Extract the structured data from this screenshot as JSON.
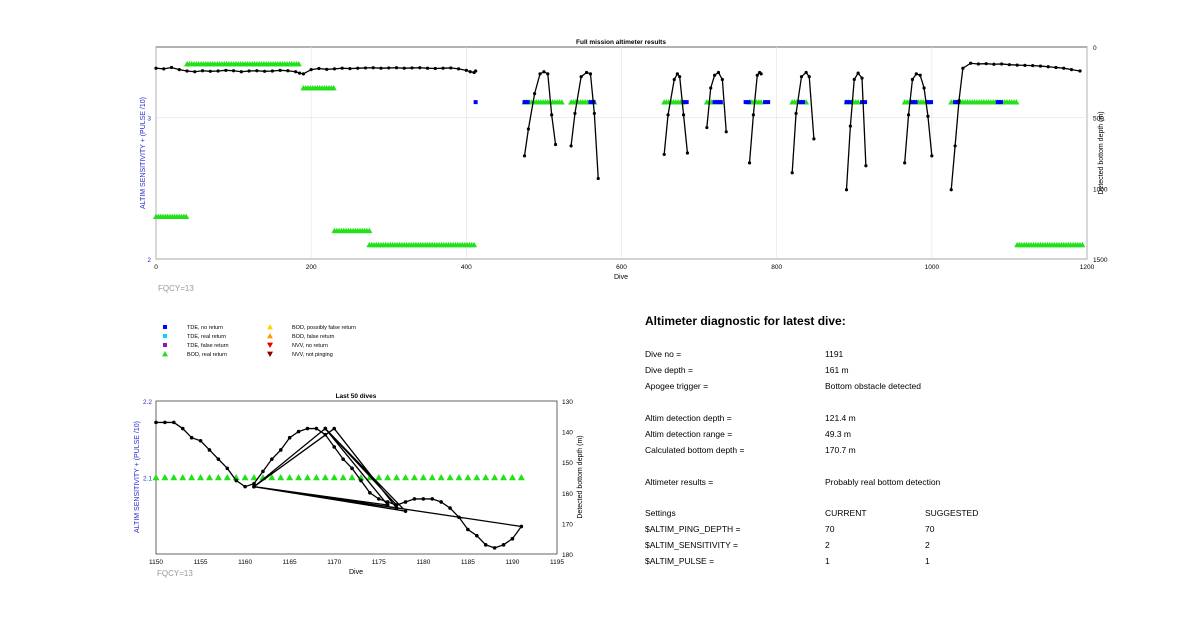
{
  "colors": {
    "tde_no_return": "#0000ff",
    "tde_real_return": "#00d8ff",
    "tde_false_return": "#7a1fbf",
    "bod_real_return": "#22e01a",
    "bod_possibly_false": "#ffd400",
    "bod_false_return": "#ff9d00",
    "nvv_no_return": "#e60000",
    "nvv_not_pinging": "#8b0000",
    "depth_line": "#000000",
    "left_axis_label": "#2a2ad0",
    "fqcy_text": "#999999"
  },
  "legend": {
    "items": [
      {
        "label": "TDE, no return",
        "icon": "square",
        "color": "#0000ff"
      },
      {
        "label": "TDE, real return",
        "icon": "square",
        "color": "#00d8ff"
      },
      {
        "label": "TDE, false return",
        "icon": "square",
        "color": "#7a1fbf"
      },
      {
        "label": "BOD, real return",
        "icon": "triangle-up",
        "color": "#22e01a"
      },
      {
        "label": "BOD, possibly false return",
        "icon": "triangle-up",
        "color": "#ffd400"
      },
      {
        "label": "BOD, false return",
        "icon": "triangle-up",
        "color": "#ff9d00"
      },
      {
        "label": "NVV, no return",
        "icon": "triangle-down",
        "color": "#e60000"
      },
      {
        "label": "NVV, not pinging",
        "icon": "triangle-down",
        "color": "#8b0000"
      }
    ]
  },
  "chart_data": [
    {
      "type": "scatter",
      "title": "Full mission altimeter results",
      "xlabel": "Dive",
      "ylabel_left": "ALTIM SENSITIVITY + (PULSE /10)",
      "ylabel_right": "Detected bottom depth (m)",
      "xlim": [
        0,
        1200
      ],
      "ylim_left": [
        2,
        3.5
      ],
      "ylim_right_reversed": [
        0,
        1500
      ],
      "x_ticks": [
        0,
        200,
        400,
        600,
        800,
        1000,
        1200
      ],
      "y_left_ticks": [
        2,
        3
      ],
      "y_right_ticks": [
        0,
        500,
        1000,
        1500
      ],
      "grid": true,
      "annotation": "FQCY=13",
      "depth_series": {
        "name": "Detected bottom depth",
        "x": [
          0,
          10,
          20,
          30,
          40,
          50,
          60,
          70,
          80,
          90,
          100,
          110,
          120,
          130,
          140,
          150,
          160,
          170,
          180,
          185,
          190,
          200,
          210,
          220,
          230,
          240,
          250,
          260,
          270,
          280,
          290,
          300,
          310,
          320,
          330,
          340,
          350,
          360,
          370,
          380,
          390,
          400,
          405,
          410,
          412
        ],
        "y": [
          150,
          155,
          145,
          160,
          170,
          175,
          168,
          172,
          170,
          165,
          168,
          175,
          170,
          168,
          172,
          170,
          165,
          168,
          175,
          185,
          190,
          160,
          152,
          158,
          155,
          150,
          153,
          150,
          148,
          147,
          150,
          148,
          147,
          150,
          148,
          147,
          150,
          152,
          150,
          148,
          155,
          165,
          175,
          180,
          170
        ],
        "excursions": [
          {
            "x": [
              475,
              480,
              488,
              495,
              500,
              505,
              510,
              515
            ],
            "y": [
              770,
              580,
              330,
              190,
              175,
              190,
              480,
              690
            ]
          },
          {
            "x": [
              535,
              540,
              548,
              555,
              560,
              565,
              570
            ],
            "y": [
              700,
              470,
              210,
              180,
              190,
              470,
              930
            ]
          },
          {
            "x": [
              655,
              660,
              668,
              672,
              675,
              680,
              685
            ],
            "y": [
              760,
              480,
              230,
              190,
              210,
              480,
              750
            ]
          },
          {
            "x": [
              710,
              715,
              720,
              725,
              730,
              735
            ],
            "y": [
              570,
              290,
              200,
              180,
              230,
              600
            ]
          },
          {
            "x": [
              765,
              770,
              775,
              778,
              780
            ],
            "y": [
              820,
              480,
              200,
              180,
              190
            ]
          },
          {
            "x": [
              820,
              825,
              832,
              838,
              842,
              848
            ],
            "y": [
              890,
              470,
              210,
              180,
              210,
              650
            ]
          },
          {
            "x": [
              890,
              895,
              900,
              905,
              910,
              915
            ],
            "y": [
              1010,
              560,
              230,
              185,
              220,
              840
            ]
          },
          {
            "x": [
              965,
              970,
              975,
              980,
              985,
              990,
              995,
              1000
            ],
            "y": [
              820,
              480,
              230,
              190,
              200,
              290,
              490,
              770
            ]
          },
          {
            "x": [
              1025,
              1030,
              1035,
              1040,
              1050,
              1060,
              1070,
              1080,
              1090,
              1100,
              1110,
              1120,
              1130,
              1140,
              1150,
              1160,
              1170,
              1180,
              1191
            ],
            "y": [
              1010,
              700,
              380,
              150,
              115,
              120,
              118,
              122,
              120,
              125,
              128,
              130,
              132,
              135,
              140,
              145,
              150,
              160,
              170
            ]
          }
        ]
      },
      "bands": [
        {
          "category": "bod_real_return",
          "y": 3.38,
          "x_ranges": [
            [
              40,
              185
            ]
          ]
        },
        {
          "category": "bod_real_return",
          "y": 3.21,
          "x_ranges": [
            [
              190,
              230
            ]
          ]
        },
        {
          "category": "bod_real_return",
          "y": 3.11,
          "x_ranges": [
            [
              475,
              525
            ],
            [
              535,
              565
            ],
            [
              655,
              680
            ],
            [
              710,
              730
            ],
            [
              765,
              780
            ],
            [
              820,
              840
            ],
            [
              890,
              905
            ],
            [
              965,
              995
            ],
            [
              1025,
              1110
            ]
          ]
        },
        {
          "category": "tde_no_return",
          "y": 3.11,
          "x_ranges": [
            [
              412,
              414
            ],
            [
              475,
              480
            ],
            [
              560,
              565
            ],
            [
              680,
              685
            ],
            [
              720,
              730
            ],
            [
              760,
              765
            ],
            [
              785,
              790
            ],
            [
              830,
              835
            ],
            [
              890,
              895
            ],
            [
              910,
              915
            ],
            [
              975,
              980
            ],
            [
              995,
              1000
            ],
            [
              1030,
              1035
            ],
            [
              1085,
              1090
            ]
          ]
        },
        {
          "category": "bod_real_return",
          "y": 2.3,
          "x_ranges": [
            [
              0,
              40
            ]
          ]
        },
        {
          "category": "bod_real_return",
          "y": 2.2,
          "x_ranges": [
            [
              230,
              275
            ]
          ]
        },
        {
          "category": "bod_real_return",
          "y": 2.1,
          "x_ranges": [
            [
              275,
              410
            ],
            [
              1110,
              1195
            ]
          ]
        }
      ]
    },
    {
      "type": "line",
      "title": "Last 50 dives",
      "xlabel": "Dive",
      "ylabel_left": "ALTIM SENSITIVITY + (PULSE /10)",
      "ylabel_right": "Detected bottom depth (m)",
      "xlim": [
        1150,
        1195
      ],
      "ylim_left": [
        2,
        2.2
      ],
      "ylim_right_reversed": [
        130,
        180
      ],
      "x_ticks": [
        1150,
        1155,
        1160,
        1165,
        1170,
        1175,
        1180,
        1185,
        1190,
        1195
      ],
      "y_left_ticks": [
        2.1,
        2.2
      ],
      "y_right_ticks": [
        130,
        140,
        150,
        160,
        170,
        180
      ],
      "annotation": "FQCY=13",
      "depth_series": {
        "x": [
          1150,
          1151,
          1152,
          1153,
          1154,
          1155,
          1156,
          1157,
          1158,
          1159,
          1160,
          1161,
          1162,
          1163,
          1164,
          1165,
          1166,
          1167,
          1168,
          1169,
          1170,
          1171,
          1172,
          1173,
          1174,
          1175,
          1176,
          1177,
          1178,
          1179,
          1180,
          1181,
          1182,
          1183,
          1184,
          1185,
          1186,
          1187,
          1188,
          1189,
          1190,
          1191,
          1161,
          1169,
          1178,
          1161,
          1169,
          1176,
          1161,
          1170,
          1177,
          1161,
          1169,
          1177
        ],
        "y": [
          137,
          137,
          137,
          139,
          142,
          143,
          146,
          149,
          152,
          156,
          158,
          157,
          153,
          149,
          146,
          142,
          140,
          139,
          139,
          141,
          145,
          149,
          152,
          156,
          160,
          162,
          163,
          164,
          163,
          162,
          162,
          162,
          163,
          165,
          168,
          172,
          174,
          177,
          178,
          177,
          175,
          171,
          158,
          139,
          166,
          158,
          139,
          164,
          158,
          139,
          165,
          158,
          139,
          164
        ]
      },
      "sensitivity_series": {
        "name": "BOD, real return",
        "x": [
          1150,
          1151,
          1152,
          1153,
          1154,
          1155,
          1156,
          1157,
          1158,
          1159,
          1160,
          1161,
          1162,
          1163,
          1164,
          1165,
          1166,
          1167,
          1168,
          1169,
          1170,
          1171,
          1172,
          1173,
          1174,
          1175,
          1176,
          1177,
          1178,
          1179,
          1180,
          1181,
          1182,
          1183,
          1184,
          1185,
          1186,
          1187,
          1188,
          1189,
          1190,
          1191
        ],
        "value": 2.1
      }
    }
  ],
  "diagnostic": {
    "title": "Altimeter diagnostic for latest dive:",
    "rows": [
      {
        "label": "Dive no =",
        "value": "1191"
      },
      {
        "label": "Dive depth =",
        "value": "161 m"
      },
      {
        "label": "Apogee trigger =",
        "value": "Bottom obstacle detected"
      },
      {
        "label": "Altim detection depth =",
        "value": "121.4 m"
      },
      {
        "label": "Altim detection range =",
        "value": "49.3 m"
      },
      {
        "label": "Calculated bottom depth =",
        "value": "170.7 m"
      },
      {
        "label": "Altimeter results =",
        "value": "Probably real bottom detection"
      }
    ],
    "settings": {
      "header": {
        "label": "Settings",
        "current": "CURRENT",
        "suggested": "SUGGESTED"
      },
      "rows": [
        {
          "label": "$ALTIM_PING_DEPTH =",
          "current": "70",
          "suggested": "70"
        },
        {
          "label": "$ALTIM_SENSITIVITY =",
          "current": "2",
          "suggested": "2"
        },
        {
          "label": "$ALTIM_PULSE =",
          "current": "1",
          "suggested": "1"
        }
      ]
    }
  }
}
